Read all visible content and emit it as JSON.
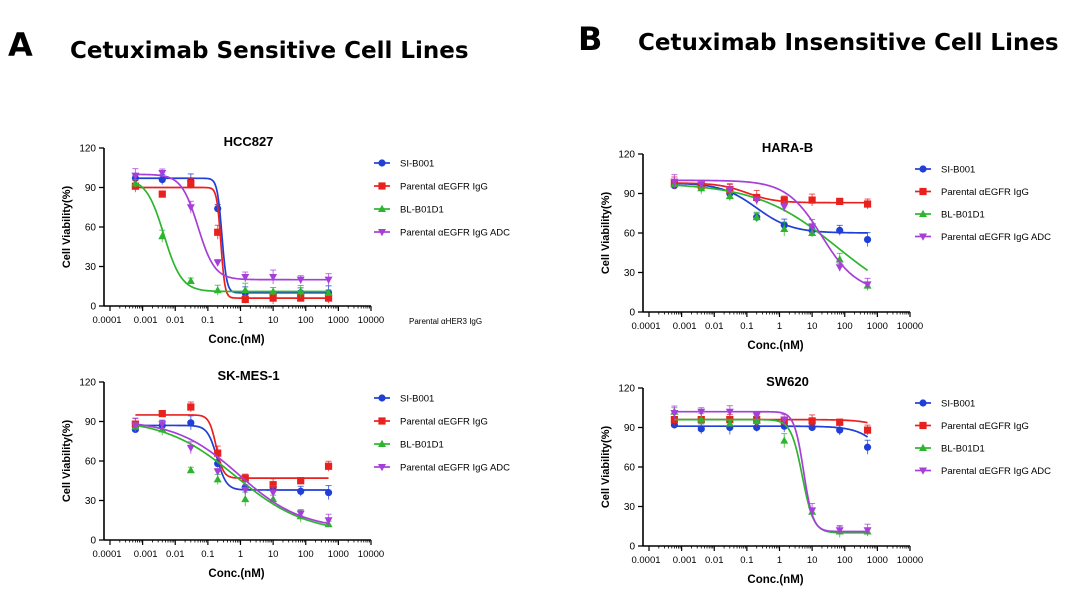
{
  "panels": {
    "A": {
      "letter": "A",
      "title": "Cetuximab Sensitive Cell Lines"
    },
    "B": {
      "letter": "B",
      "title": "Cetuximab Insensitive Cell Lines"
    }
  },
  "stray_label": "Parental αHER3 IgG",
  "colors": {
    "SI-B001": "#1f3fd6",
    "Parental αEGFR IgG": "#e8211f",
    "BL-B01D1": "#2db52d",
    "Parental αEGFR IgG ADC": "#a63fd9"
  },
  "chart_data": [
    {
      "id": "hcc827",
      "type": "line",
      "title": "HCC827",
      "xlabel": "Conc.(nM)",
      "ylabel": "Cell Viability(%)",
      "xscale": "log",
      "xlim": [
        0.0001,
        10000
      ],
      "ylim": [
        0,
        120
      ],
      "yticks": [
        0,
        30,
        60,
        90,
        120
      ],
      "xticks": [
        "0.0001",
        "0.001",
        "0.01",
        "0.1",
        "1",
        "10",
        "100",
        "1000",
        "10000"
      ],
      "legend": [
        "SI-B001",
        "Parental αEGFR IgG",
        "BL-B01D1",
        "Parental αEGFR IgG ADC"
      ],
      "x": [
        0.0006,
        0.004,
        0.03,
        0.2,
        1.4,
        10,
        70,
        500
      ],
      "series": [
        {
          "name": "SI-B001",
          "values": [
            97,
            96,
            95,
            74,
            10,
            9,
            10,
            10
          ],
          "fit": {
            "top": 97,
            "bottom": 10,
            "ic50": 0.27,
            "hill": 6
          }
        },
        {
          "name": "Parental αEGFR IgG",
          "values": [
            91,
            85,
            93,
            56,
            5,
            6,
            6,
            6
          ],
          "fit": {
            "top": 90,
            "bottom": 6,
            "ic50": 0.25,
            "hill": 7
          }
        },
        {
          "name": "BL-B01D1",
          "values": [
            93,
            53,
            19,
            12,
            12,
            11,
            11,
            10
          ],
          "fit": {
            "top": 97,
            "bottom": 11,
            "ic50": 0.0045,
            "hill": 1.6
          }
        },
        {
          "name": "Parental αEGFR IgG ADC",
          "values": [
            99,
            101,
            75,
            33,
            22,
            22,
            20,
            20
          ],
          "fit": {
            "top": 100,
            "bottom": 20,
            "ic50": 0.05,
            "hill": 1.7
          }
        }
      ]
    },
    {
      "id": "skmes1",
      "type": "line",
      "title": "SK-MES-1",
      "xlabel": "Conc.(nM)",
      "ylabel": "Cell Viability(%)",
      "xscale": "log",
      "xlim": [
        0.0001,
        10000
      ],
      "ylim": [
        0,
        120
      ],
      "yticks": [
        0,
        30,
        60,
        90,
        120
      ],
      "xticks": [
        "0.0001",
        "0.001",
        "0.01",
        "0.1",
        "1",
        "10",
        "100",
        "1000",
        "10000"
      ],
      "legend": [
        "SI-B001",
        "Parental αEGFR IgG",
        "BL-B01D1",
        "Parental αEGFR IgG ADC"
      ],
      "x": [
        0.0006,
        0.004,
        0.03,
        0.2,
        1.4,
        10,
        70,
        500
      ],
      "series": [
        {
          "name": "SI-B001",
          "values": [
            84,
            87,
            89,
            58,
            40,
            40,
            37,
            36
          ],
          "fit": {
            "top": 87,
            "bottom": 38,
            "ic50": 0.19,
            "hill": 3
          }
        },
        {
          "name": "Parental αEGFR IgG",
          "values": [
            88,
            96,
            101,
            66,
            47,
            42,
            45,
            56
          ],
          "fit": {
            "top": 95,
            "bottom": 47,
            "ic50": 0.18,
            "hill": 4
          }
        },
        {
          "name": "BL-B01D1",
          "values": [
            86,
            84,
            53,
            46,
            31,
            31,
            18,
            12
          ],
          "fit": {
            "top": 92,
            "bottom": 5,
            "ic50": 0.7,
            "hill": 0.4
          }
        },
        {
          "name": "Parental αEGFR IgG ADC",
          "values": [
            87,
            88,
            70,
            52,
            38,
            36,
            20,
            15
          ],
          "fit": {
            "top": 91,
            "bottom": 8,
            "ic50": 0.9,
            "hill": 0.45
          }
        }
      ]
    },
    {
      "id": "harab",
      "type": "line",
      "title": "HARA-B",
      "xlabel": "Conc.(nM)",
      "ylabel": "Cell Viability(%)",
      "xscale": "log",
      "xlim": [
        0.0001,
        10000
      ],
      "ylim": [
        0,
        120
      ],
      "yticks": [
        0,
        30,
        60,
        90,
        120
      ],
      "xticks": [
        "0.0001",
        "0.001",
        "0.01",
        "0.1",
        "1",
        "10",
        "100",
        "1000",
        "10000"
      ],
      "legend": [
        "SI-B001",
        "Parental αEGFR IgG",
        "BL-B01D1",
        "Parental αEGFR IgG ADC"
      ],
      "x": [
        0.0006,
        0.004,
        0.03,
        0.2,
        1.4,
        10,
        70,
        500
      ],
      "series": [
        {
          "name": "SI-B001",
          "values": [
            96,
            95,
            90,
            72,
            66,
            62,
            62,
            55
          ],
          "fit": {
            "top": 98,
            "bottom": 60,
            "ic50": 0.2,
            "hill": 0.8
          }
        },
        {
          "name": "Parental αEGFR IgG",
          "values": [
            98,
            96,
            93,
            87,
            85,
            85,
            84,
            82
          ],
          "fit": {
            "top": 98,
            "bottom": 83,
            "ic50": 0.1,
            "hill": 1
          }
        },
        {
          "name": "BL-B01D1",
          "values": [
            97,
            94,
            88,
            72,
            63,
            60,
            40,
            20
          ],
          "fit": {
            "top": 98,
            "bottom": 0,
            "ic50": 60,
            "hill": 0.35
          }
        },
        {
          "name": "Parental αEGFR IgG ADC",
          "values": [
            99,
            97,
            93,
            85,
            80,
            65,
            34,
            21
          ],
          "fit": {
            "top": 100,
            "bottom": 15,
            "ic50": 20,
            "hill": 0.8
          }
        }
      ]
    },
    {
      "id": "sw620",
      "type": "line",
      "title": "SW620",
      "xlabel": "Conc.(nM)",
      "ylabel": "Cell Viability(%)",
      "xscale": "log",
      "xlim": [
        0.0001,
        10000
      ],
      "ylim": [
        0,
        120
      ],
      "yticks": [
        0,
        30,
        60,
        90,
        120
      ],
      "xticks": [
        "0.0001",
        "0.001",
        "0.01",
        "0.1",
        "1",
        "10",
        "100",
        "1000",
        "10000"
      ],
      "legend": [
        "SI-B001",
        "Parental αEGFR IgG",
        "BL-B01D1",
        "Parental αEGFR IgG ADC"
      ],
      "x": [
        0.0006,
        0.004,
        0.03,
        0.2,
        1.4,
        10,
        70,
        500
      ],
      "series": [
        {
          "name": "SI-B001",
          "values": [
            92,
            89,
            90,
            90,
            91,
            90,
            88,
            75
          ],
          "fit": {
            "top": 91,
            "bottom": 0,
            "ic50": 5000,
            "hill": 1
          }
        },
        {
          "name": "Parental αEGFR IgG",
          "values": [
            96,
            96,
            96,
            96,
            95,
            95,
            94,
            88
          ],
          "fit": {
            "top": 96,
            "bottom": 0,
            "ic50": 20000,
            "hill": 1
          }
        },
        {
          "name": "BL-B01D1",
          "values": [
            102,
            96,
            93,
            95,
            80,
            26,
            11,
            11
          ],
          "fit": {
            "top": 96,
            "bottom": 10,
            "ic50": 5,
            "hill": 2.5
          }
        },
        {
          "name": "Parental αEGFR IgG ADC",
          "values": [
            101,
            102,
            102,
            99,
            96,
            27,
            12,
            12
          ],
          "fit": {
            "top": 102,
            "bottom": 11,
            "ic50": 5.5,
            "hill": 3
          }
        }
      ]
    }
  ]
}
